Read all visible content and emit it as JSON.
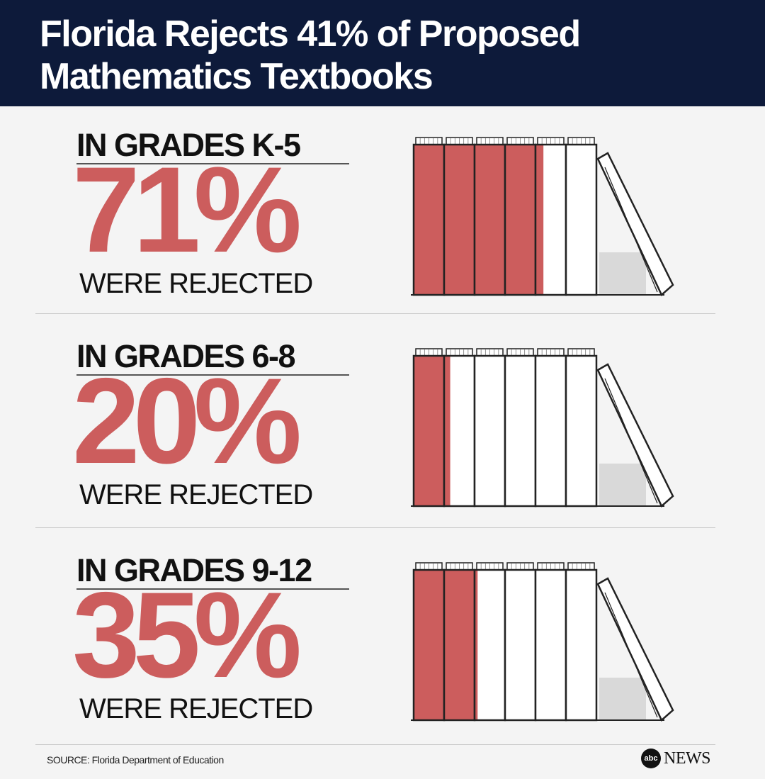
{
  "header": {
    "title_line1": "Florida Rejects 41% of Proposed",
    "title_line2": "Mathematics Textbooks"
  },
  "chart_data": {
    "type": "pictogram",
    "title": "Florida Rejects 41% of Proposed Mathematics Textbooks",
    "books_per_row": 6,
    "categories": [
      "IN GRADES K-5",
      "IN GRADES 6-8",
      "IN GRADES 9-12"
    ],
    "values": [
      71,
      20,
      35
    ],
    "value_labels": [
      "71%",
      "20%",
      "35%"
    ],
    "caption": "WERE REJECTED",
    "colors": {
      "rejected": "#cc5d5d",
      "accepted": "#ffffff",
      "outline": "#222222"
    }
  },
  "sections": [
    {
      "grade": "IN GRADES K-5",
      "percent_label": "71%",
      "caption": "WERE REJECTED"
    },
    {
      "grade": "IN GRADES 6-8",
      "percent_label": "20%",
      "caption": "WERE REJECTED"
    },
    {
      "grade": "IN GRADES 9-12",
      "percent_label": "35%",
      "caption": "WERE REJECTED"
    }
  ],
  "footer": {
    "source": "SOURCE: Florida Department of Education",
    "logo_badge": "abc",
    "logo_text": "NEWS"
  }
}
